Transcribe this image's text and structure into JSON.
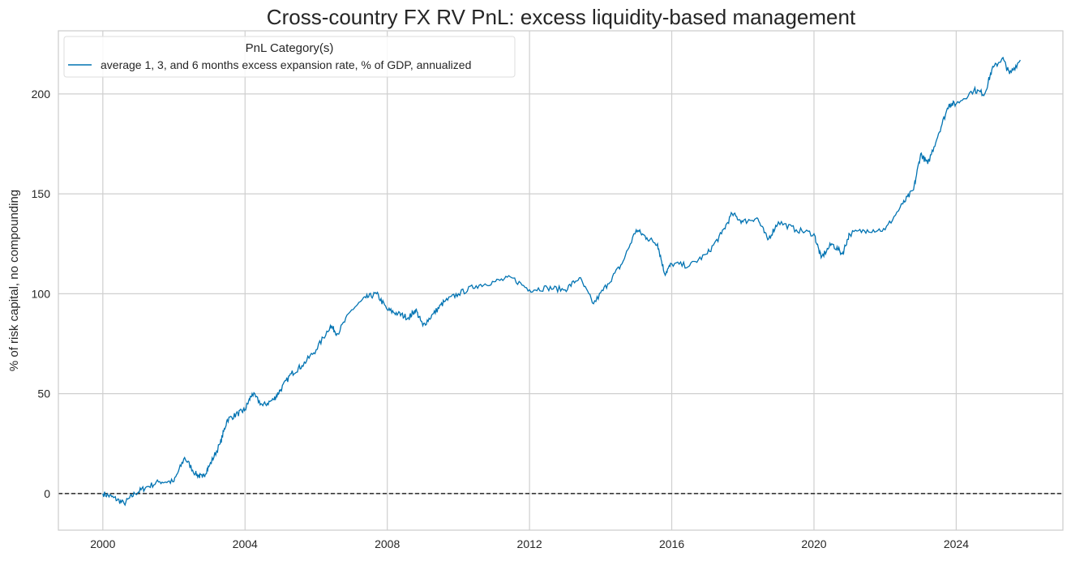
{
  "chart_data": {
    "type": "line",
    "title": "Cross-country FX RV PnL: excess liquidity-based management",
    "xlabel": "",
    "ylabel": "% of risk capital, no compounding",
    "xlim": [
      1998.75,
      2027.0
    ],
    "ylim": [
      -18.3,
      231.6
    ],
    "xticks": [
      2000,
      2004,
      2008,
      2012,
      2016,
      2020,
      2024
    ],
    "xtick_labels": [
      "2000",
      "2004",
      "2008",
      "2012",
      "2016",
      "2020",
      "2024"
    ],
    "yticks": [
      0,
      50,
      100,
      150,
      200
    ],
    "ytick_labels": [
      "0",
      "50",
      "100",
      "150",
      "200"
    ],
    "grid": true,
    "reference_line": {
      "y": 0,
      "style": "dashed",
      "color": "#000000"
    },
    "legend": {
      "title": "PnL Category(s)",
      "placement": "top-left"
    },
    "series": [
      {
        "name": "average 1, 3, and 6 months excess expansion rate, % of GDP, annualized",
        "color": "#0173b2",
        "x": [
          2000.0,
          2000.3,
          2000.6,
          2000.9,
          2001.2,
          2001.6,
          2002.0,
          2002.3,
          2002.6,
          2002.8,
          2003.0,
          2003.3,
          2003.5,
          2003.8,
          2004.0,
          2004.2,
          2004.5,
          2004.8,
          2005.0,
          2005.3,
          2005.6,
          2006.0,
          2006.4,
          2006.6,
          2007.0,
          2007.4,
          2007.7,
          2008.0,
          2008.3,
          2008.6,
          2008.8,
          2009.0,
          2009.3,
          2009.6,
          2010.0,
          2010.5,
          2011.0,
          2011.5,
          2012.0,
          2012.5,
          2013.0,
          2013.4,
          2013.8,
          2014.2,
          2014.6,
          2015.0,
          2015.3,
          2015.6,
          2015.8,
          2016.0,
          2016.5,
          2017.0,
          2017.4,
          2017.7,
          2018.0,
          2018.4,
          2018.7,
          2019.0,
          2019.5,
          2020.0,
          2020.2,
          2020.5,
          2020.8,
          2021.0,
          2021.5,
          2022.0,
          2022.5,
          2022.8,
          2023.0,
          2023.2,
          2023.5,
          2023.8,
          2024.0,
          2024.5,
          2024.8,
          2025.0,
          2025.3,
          2025.5,
          2025.8
        ],
        "values": [
          0,
          -2,
          -5,
          0,
          3,
          6,
          6,
          18,
          10,
          8,
          14,
          25,
          37,
          40,
          42,
          50,
          44,
          47,
          52,
          60,
          64,
          72,
          84,
          80,
          92,
          98,
          100,
          92,
          90,
          88,
          92,
          84,
          90,
          96,
          100,
          104,
          106,
          108,
          102,
          103,
          102,
          108,
          95,
          105,
          115,
          132,
          128,
          125,
          110,
          115,
          114,
          120,
          130,
          140,
          136,
          138,
          127,
          136,
          132,
          130,
          118,
          125,
          120,
          130,
          132,
          132,
          145,
          152,
          170,
          165,
          180,
          195,
          195,
          202,
          200,
          212,
          218,
          210,
          217
        ]
      }
    ]
  }
}
